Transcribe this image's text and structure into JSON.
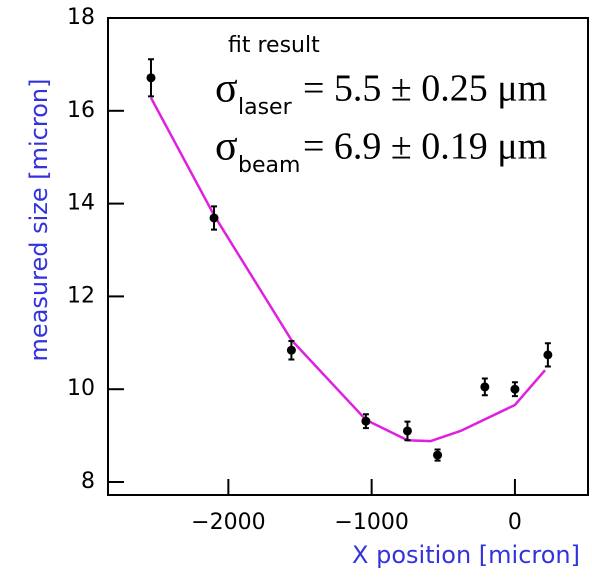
{
  "chart_data": {
    "type": "scatter",
    "xlabel": "X position [micron]",
    "ylabel": "measured size [micron]",
    "label_color": "#3333dd",
    "xlim": [
      -2840,
      510
    ],
    "ylim": [
      7.72,
      18
    ],
    "xticks": [
      {
        "value": -2000,
        "label": "−2000"
      },
      {
        "value": -1000,
        "label": "−1000"
      },
      {
        "value": 0,
        "label": "0"
      }
    ],
    "yticks": [
      8,
      10,
      12,
      14,
      16,
      18
    ],
    "series": [
      {
        "type": "errorbar",
        "color": "#000000",
        "x": [
          -2540,
          -2100,
          -1560,
          -1040,
          -750,
          -540,
          -210,
          0,
          230
        ],
        "values": [
          16.71,
          13.69,
          10.84,
          9.31,
          9.1,
          8.58,
          10.05,
          10.0,
          10.74
        ],
        "errors": [
          0.4,
          0.25,
          0.2,
          0.15,
          0.2,
          0.12,
          0.18,
          0.15,
          0.25
        ]
      },
      {
        "type": "line",
        "color": "#e020e0",
        "x": [
          -2540,
          -2100,
          -1560,
          -1040,
          -750,
          -590,
          -380,
          0,
          210
        ],
        "values": [
          16.28,
          13.75,
          11.06,
          9.34,
          8.9,
          8.88,
          9.1,
          9.66,
          10.41
        ]
      }
    ],
    "annotations": {
      "title": "fit result",
      "lines": [
        {
          "symbol": "σ",
          "subscript": "laser",
          "text": "= 5.5 ± 0.25 μm"
        },
        {
          "symbol": "σ",
          "subscript": "beam",
          "text": "= 6.9 ± 0.19 μm"
        }
      ]
    }
  }
}
